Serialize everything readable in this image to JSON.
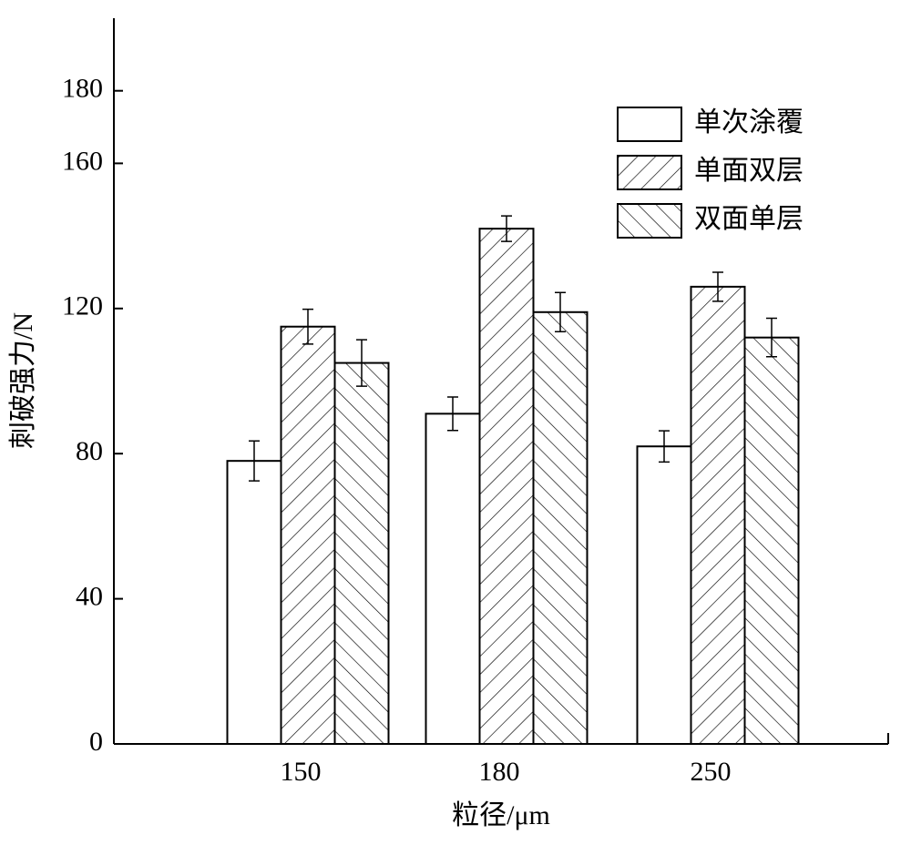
{
  "chart_data": {
    "type": "bar",
    "x_label": "粒径/μm",
    "y_label": "刺破强力/N",
    "categories": [
      "150",
      "180",
      "250"
    ],
    "series": [
      {
        "name": "单次涂覆",
        "color": "#ffffff",
        "pattern": "none",
        "values": [
          78,
          91,
          82
        ],
        "errors": [
          5.5,
          4.6,
          4.3
        ]
      },
      {
        "name": "单面双层",
        "color": "#ffffff",
        "pattern": "slash",
        "values": [
          115,
          142,
          126
        ],
        "errors": [
          4.8,
          3.5,
          4
        ]
      },
      {
        "name": "双面单层",
        "color": "#ffffff",
        "pattern": "backslash",
        "values": [
          105,
          119,
          112
        ],
        "errors": [
          6.4,
          5.4,
          5.3
        ]
      }
    ],
    "ylim": [
      0,
      200
    ],
    "yticks": [
      0,
      40,
      80,
      120,
      160,
      180
    ],
    "legend": "upper right"
  }
}
